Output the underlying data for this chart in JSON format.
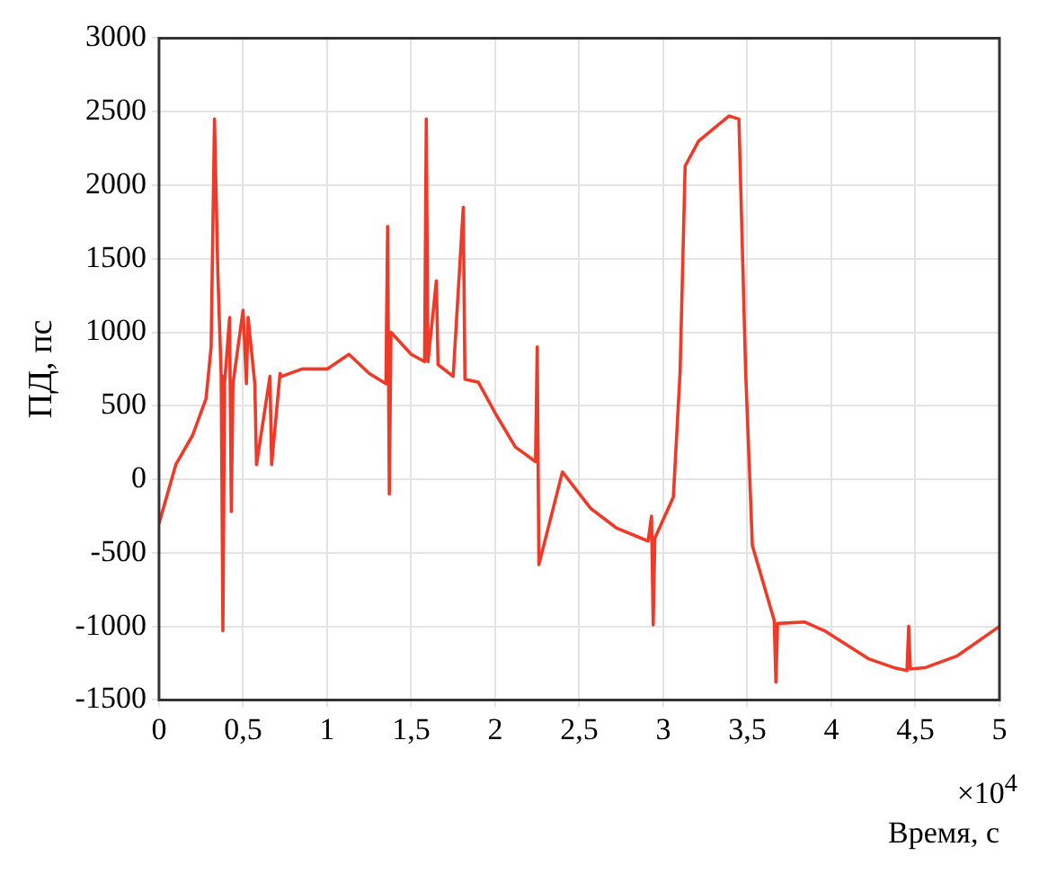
{
  "chart_data": {
    "type": "line",
    "xlabel": "Время, с",
    "ylabel": "ПД, пс",
    "annotations": [
      "×10$^{4}$"
    ],
    "x": [
      0,
      0.05,
      0.1,
      0.2,
      0.28,
      0.31,
      0.33,
      0.35,
      0.37,
      0.38,
      0.39,
      0.42,
      0.43,
      0.44,
      0.5,
      0.52,
      0.53,
      0.57,
      0.58,
      0.66,
      0.67,
      0.72,
      0.73,
      0.85,
      1.0,
      1.13,
      1.25,
      1.35,
      1.36,
      1.37,
      1.38,
      1.5,
      1.58,
      1.59,
      1.6,
      1.65,
      1.66,
      1.75,
      1.81,
      1.82,
      1.9,
      2.0,
      2.12,
      2.24,
      2.25,
      2.26,
      2.4,
      2.57,
      2.72,
      2.91,
      2.93,
      2.94,
      2.95,
      3.06,
      3.1,
      3.13,
      3.21,
      3.39,
      3.45,
      3.49,
      3.53,
      3.66,
      3.67,
      3.68,
      3.84,
      3.96,
      4.22,
      4.37,
      4.45,
      4.46,
      4.47,
      4.56,
      4.75,
      5.0
    ],
    "series": [
      {
        "color": "#ee3a28",
        "values": [
          -300,
          -100,
          100,
          300,
          550,
          900,
          2450,
          1400,
          700,
          -1030,
          650,
          1100,
          -220,
          650,
          1150,
          650,
          1100,
          650,
          100,
          700,
          100,
          720,
          700,
          750,
          750,
          850,
          720,
          650,
          1720,
          -100,
          1000,
          850,
          800,
          2450,
          800,
          1350,
          780,
          700,
          1850,
          680,
          660,
          450,
          220,
          120,
          900,
          -580,
          50,
          -200,
          -330,
          -420,
          -250,
          -990,
          -400,
          -120,
          730,
          2130,
          2300,
          2470,
          2450,
          730,
          -450,
          -960,
          -1380,
          -980,
          -970,
          -1030,
          -1220,
          -1280,
          -1300,
          -1000,
          -1290,
          -1280,
          -1200,
          -1000
        ]
      }
    ],
    "xlim": [
      0,
      5
    ],
    "xticks": [
      0,
      {
        "value": 0.5,
        "label": "0,5"
      },
      1,
      {
        "value": 1.5,
        "label": "1,5"
      },
      2,
      {
        "value": 2.5,
        "label": "2,5"
      },
      3,
      {
        "value": 3.5,
        "label": "3,5"
      },
      4,
      {
        "value": 4.5,
        "label": "4,5"
      },
      5
    ],
    "ylim": [
      -1500,
      3000
    ],
    "yticks": [
      -1500,
      -1000,
      -500,
      0,
      500,
      1000,
      1500,
      2000,
      2500,
      3000
    ],
    "grid": true,
    "marker": "none",
    "line_style": "solid"
  }
}
